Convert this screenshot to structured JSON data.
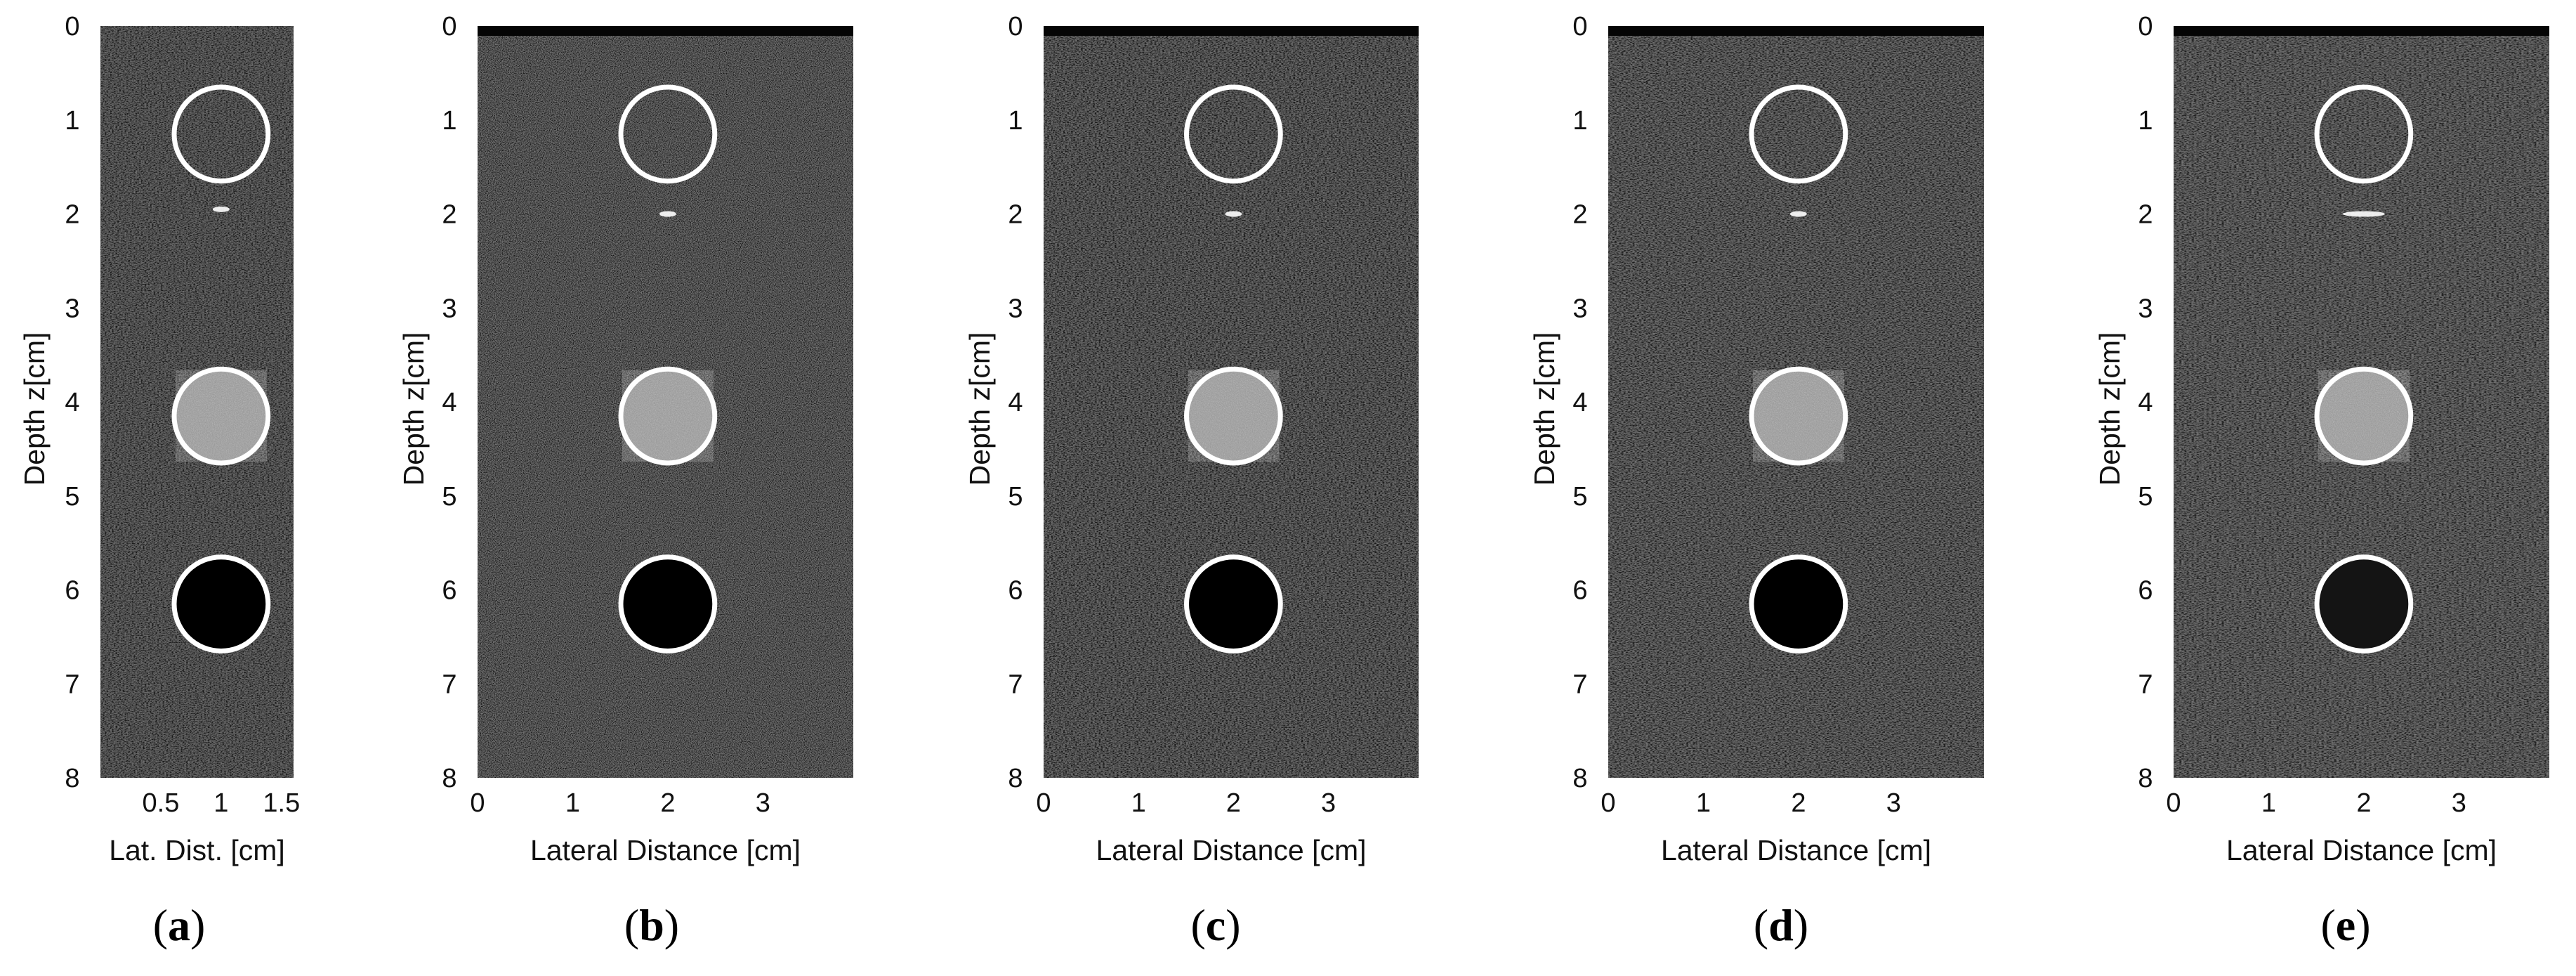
{
  "figure": {
    "panels": [
      {
        "id": "a",
        "tag": "a",
        "xlabel": "Lat. Dist. [cm]",
        "ylabel": "Depth z[cm]",
        "xticks": [
          "0.5",
          "1",
          "1.5"
        ],
        "xtick_values": [
          0.5,
          1,
          1.5
        ],
        "xlim": [
          0,
          1.6
        ],
        "yticks": [
          "0",
          "1",
          "2",
          "3",
          "4",
          "5",
          "6",
          "7",
          "8"
        ],
        "ylim": [
          0,
          8
        ],
        "image_style": {
          "base": "#2d2d2d",
          "speckle_contrast": 0.9,
          "axial_streak": 0.6
        },
        "point_target_depth": 1.95,
        "regions": [
          {
            "type": "anechoic-check",
            "center_x": 1.0,
            "center_z": 1.15,
            "radius": 0.5,
            "fill": "none"
          },
          {
            "type": "hyperechoic-cyst",
            "center_x": 1.0,
            "center_z": 4.15,
            "radius": 0.5,
            "fill": "bright"
          },
          {
            "type": "anechoic-cyst",
            "center_x": 1.0,
            "center_z": 6.15,
            "radius": 0.5,
            "fill": "dark"
          }
        ]
      },
      {
        "id": "b",
        "tag": "b",
        "xlabel": "Lateral Distance [cm]",
        "ylabel": "Depth z[cm]",
        "xticks": [
          "0",
          "1",
          "2",
          "3"
        ],
        "xtick_values": [
          0,
          1,
          2,
          3
        ],
        "xlim": [
          0,
          3.95
        ],
        "yticks": [
          "0",
          "1",
          "2",
          "3",
          "4",
          "5",
          "6",
          "7",
          "8"
        ],
        "ylim": [
          0,
          8
        ],
        "image_style": {
          "base": "#242424",
          "speckle_contrast": 1.3,
          "axial_streak": 0.0
        },
        "point_target_depth": 2.0,
        "regions": [
          {
            "type": "anechoic-check",
            "center_x": 2.0,
            "center_z": 1.15,
            "radius": 0.5,
            "fill": "none"
          },
          {
            "type": "hyperechoic-cyst",
            "center_x": 2.0,
            "center_z": 4.15,
            "radius": 0.5,
            "fill": "bright"
          },
          {
            "type": "anechoic-cyst",
            "center_x": 2.0,
            "center_z": 6.15,
            "radius": 0.5,
            "fill": "dark"
          }
        ]
      },
      {
        "id": "c",
        "tag": "c",
        "xlabel": "Lateral Distance [cm]",
        "ylabel": "Depth z[cm]",
        "xticks": [
          "0",
          "1",
          "2",
          "3"
        ],
        "xtick_values": [
          0,
          1,
          2,
          3
        ],
        "xlim": [
          0,
          3.95
        ],
        "yticks": [
          "0",
          "1",
          "2",
          "3",
          "4",
          "5",
          "6",
          "7",
          "8"
        ],
        "ylim": [
          0,
          8
        ],
        "image_style": {
          "base": "#2a2a2a",
          "speckle_contrast": 1.0,
          "axial_streak": 0.7
        },
        "point_target_depth": 2.0,
        "regions": [
          {
            "type": "anechoic-check",
            "center_x": 2.0,
            "center_z": 1.15,
            "radius": 0.5,
            "fill": "none"
          },
          {
            "type": "hyperechoic-cyst",
            "center_x": 2.0,
            "center_z": 4.15,
            "radius": 0.5,
            "fill": "bright"
          },
          {
            "type": "anechoic-cyst",
            "center_x": 2.0,
            "center_z": 6.15,
            "radius": 0.5,
            "fill": "dark"
          }
        ]
      },
      {
        "id": "d",
        "tag": "d",
        "xlabel": "Lateral Distance [cm]",
        "ylabel": "Depth z[cm]",
        "xticks": [
          "0",
          "1",
          "2",
          "3"
        ],
        "xtick_values": [
          0,
          1,
          2,
          3
        ],
        "xlim": [
          0,
          3.95
        ],
        "yticks": [
          "0",
          "1",
          "2",
          "3",
          "4",
          "5",
          "6",
          "7",
          "8"
        ],
        "ylim": [
          0,
          8
        ],
        "image_style": {
          "base": "#2f2f2f",
          "speckle_contrast": 1.0,
          "axial_streak": 0.85
        },
        "point_target_depth": 2.0,
        "regions": [
          {
            "type": "anechoic-check",
            "center_x": 2.0,
            "center_z": 1.15,
            "radius": 0.5,
            "fill": "none"
          },
          {
            "type": "hyperechoic-cyst",
            "center_x": 2.0,
            "center_z": 4.15,
            "radius": 0.5,
            "fill": "bright"
          },
          {
            "type": "anechoic-cyst",
            "center_x": 2.0,
            "center_z": 6.15,
            "radius": 0.5,
            "fill": "dark"
          }
        ]
      },
      {
        "id": "e",
        "tag": "e",
        "xlabel": "Lateral Distance [cm]",
        "ylabel": "Depth z[cm]",
        "xticks": [
          "0",
          "1",
          "2",
          "3"
        ],
        "xtick_values": [
          0,
          1,
          2,
          3
        ],
        "xlim": [
          0,
          3.95
        ],
        "yticks": [
          "0",
          "1",
          "2",
          "3",
          "4",
          "5",
          "6",
          "7",
          "8"
        ],
        "ylim": [
          0,
          8
        ],
        "image_style": {
          "base": "#353535",
          "speckle_contrast": 0.9,
          "axial_streak": 1.0
        },
        "point_target_depth": 2.0,
        "regions": [
          {
            "type": "anechoic-check",
            "center_x": 2.0,
            "center_z": 1.15,
            "radius": 0.5,
            "fill": "none"
          },
          {
            "type": "hyperechoic-cyst",
            "center_x": 2.0,
            "center_z": 4.15,
            "radius": 0.5,
            "fill": "bright"
          },
          {
            "type": "anechoic-cyst",
            "center_x": 2.0,
            "center_z": 6.15,
            "radius": 0.5,
            "fill": "dark-soft"
          }
        ]
      }
    ],
    "colors": {
      "region_outline": "#ffffff",
      "axis_text": "#111111",
      "background": "#ffffff"
    }
  }
}
